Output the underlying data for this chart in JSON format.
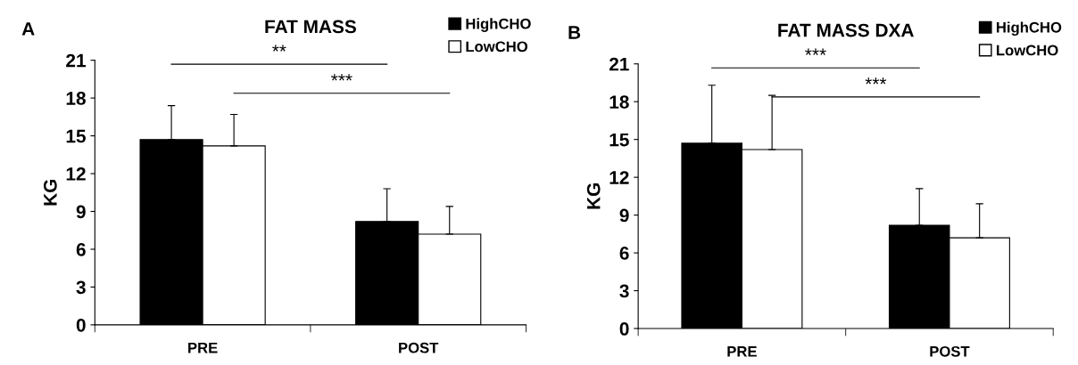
{
  "chart_data": [
    {
      "type": "bar",
      "title": "FAT MASS",
      "ylabel": "KG",
      "categories": [
        "PRE",
        "POST"
      ],
      "ylim": [
        0,
        21
      ],
      "yticks": [
        0,
        3,
        6,
        9,
        12,
        15,
        18,
        21
      ],
      "legend": "top right",
      "grid": false,
      "annotations": [
        "A",
        "**",
        "***"
      ],
      "series": [
        {
          "name": "HighCHO",
          "color": "#000000",
          "values": [
            14.7,
            8.2
          ],
          "errors": [
            [
              14.7,
              17.4
            ],
            [
              8.2,
              10.8
            ]
          ]
        },
        {
          "name": "LowCHO",
          "color": "#ffffff",
          "values": [
            14.2,
            7.2
          ],
          "errors": [
            [
              14.2,
              16.7
            ],
            [
              7.2,
              9.4
            ]
          ]
        }
      ]
    },
    {
      "type": "bar",
      "title": "FAT MASS DXA",
      "ylabel": "KG",
      "categories": [
        "PRE",
        "POST"
      ],
      "ylim": [
        0,
        21
      ],
      "yticks": [
        0,
        3,
        6,
        9,
        12,
        15,
        18,
        21
      ],
      "legend": "top right",
      "grid": false,
      "annotations": [
        "B",
        "***",
        "***"
      ],
      "series": [
        {
          "name": "HighCHO",
          "color": "#000000",
          "values": [
            14.7,
            8.2
          ],
          "errors": [
            [
              14.7,
              19.3
            ],
            [
              8.2,
              11.1
            ]
          ]
        },
        {
          "name": "LowCHO",
          "color": "#ffffff",
          "values": [
            14.2,
            7.2
          ],
          "errors": [
            [
              14.2,
              18.5
            ],
            [
              7.2,
              9.9
            ]
          ]
        }
      ]
    }
  ]
}
